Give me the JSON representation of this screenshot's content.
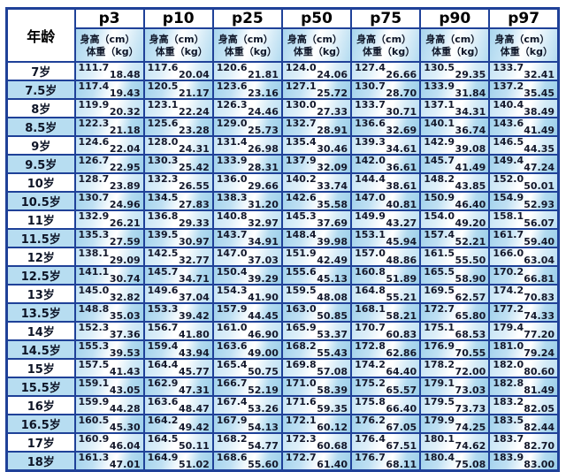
{
  "chart_data": {
    "type": "table",
    "corner_label": "年龄",
    "height_label": "身高（cm）",
    "weight_label": "体重（kg）",
    "columns": [
      "p3",
      "p10",
      "p25",
      "p50",
      "p75",
      "p90",
      "p97"
    ],
    "rows": [
      {
        "age": "7岁",
        "cells": [
          [
            "111.7",
            "18.48"
          ],
          [
            "117.6",
            "20.04"
          ],
          [
            "120.6",
            "21.81"
          ],
          [
            "124.0",
            "24.06"
          ],
          [
            "127.4",
            "26.66"
          ],
          [
            "130.5",
            "29.35"
          ],
          [
            "133.7",
            "32.41"
          ]
        ]
      },
      {
        "age": "7.5岁",
        "cells": [
          [
            "117.4",
            "19.43"
          ],
          [
            "120.5",
            "21.17"
          ],
          [
            "123.6",
            "23.16"
          ],
          [
            "127.1",
            "25.72"
          ],
          [
            "130.7",
            "28.70"
          ],
          [
            "133.9",
            "31.84"
          ],
          [
            "137.2",
            "35.45"
          ]
        ]
      },
      {
        "age": "8岁",
        "cells": [
          [
            "119.9",
            "20.32"
          ],
          [
            "123.1",
            "22.24"
          ],
          [
            "126.3",
            "24.46"
          ],
          [
            "130.0",
            "27.33"
          ],
          [
            "133.7",
            "30.71"
          ],
          [
            "137.1",
            "34.31"
          ],
          [
            "140.4",
            "38.49"
          ]
        ]
      },
      {
        "age": "8.5岁",
        "cells": [
          [
            "122.3",
            "21.18"
          ],
          [
            "125.6",
            "23.28"
          ],
          [
            "129.0",
            "25.73"
          ],
          [
            "132.7",
            "28.91"
          ],
          [
            "136.6",
            "32.69"
          ],
          [
            "140.1",
            "36.74"
          ],
          [
            "143.6",
            "41.49"
          ]
        ]
      },
      {
        "age": "9岁",
        "cells": [
          [
            "124.6",
            "22.04"
          ],
          [
            "128.0",
            "24.31"
          ],
          [
            "131.4",
            "26.98"
          ],
          [
            "135.4",
            "30.46"
          ],
          [
            "139.3",
            "34.61"
          ],
          [
            "142.9",
            "39.08"
          ],
          [
            "146.5",
            "44.35"
          ]
        ]
      },
      {
        "age": "9.5岁",
        "cells": [
          [
            "126.7",
            "22.95"
          ],
          [
            "130.3",
            "25.42"
          ],
          [
            "133.9",
            "28.31"
          ],
          [
            "137.9",
            "32.09"
          ],
          [
            "142.0",
            "36.61"
          ],
          [
            "145.7",
            "41.49"
          ],
          [
            "149.4",
            "47.24"
          ]
        ]
      },
      {
        "age": "10岁",
        "cells": [
          [
            "128.7",
            "23.89"
          ],
          [
            "132.3",
            "26.55"
          ],
          [
            "136.0",
            "29.66"
          ],
          [
            "140.2",
            "33.74"
          ],
          [
            "144.4",
            "38.61"
          ],
          [
            "148.2",
            "43.85"
          ],
          [
            "152.0",
            "50.01"
          ]
        ]
      },
      {
        "age": "10.5岁",
        "cells": [
          [
            "130.7",
            "24.96"
          ],
          [
            "134.5",
            "27.83"
          ],
          [
            "138.3",
            "31.20"
          ],
          [
            "142.6",
            "35.58"
          ],
          [
            "147.0",
            "40.81"
          ],
          [
            "150.9",
            "46.40"
          ],
          [
            "154.9",
            "52.93"
          ]
        ]
      },
      {
        "age": "11岁",
        "cells": [
          [
            "132.9",
            "26.21"
          ],
          [
            "136.8",
            "29.33"
          ],
          [
            "140.8",
            "32.97"
          ],
          [
            "145.3",
            "37.69"
          ],
          [
            "149.9",
            "43.27"
          ],
          [
            "154.0",
            "49.20"
          ],
          [
            "158.1",
            "56.07"
          ]
        ]
      },
      {
        "age": "11.5岁",
        "cells": [
          [
            "135.3",
            "27.59"
          ],
          [
            "139.5",
            "30.97"
          ],
          [
            "143.7",
            "34.91"
          ],
          [
            "148.4",
            "39.98"
          ],
          [
            "153.1",
            "45.94"
          ],
          [
            "157.4",
            "52.21"
          ],
          [
            "161.7",
            "59.40"
          ]
        ]
      },
      {
        "age": "12岁",
        "cells": [
          [
            "138.1",
            "29.09"
          ],
          [
            "142.5",
            "32.77"
          ],
          [
            "147.0",
            "37.03"
          ],
          [
            "151.9",
            "42.49"
          ],
          [
            "157.0",
            "48.86"
          ],
          [
            "161.5",
            "55.50"
          ],
          [
            "166.0",
            "63.04"
          ]
        ]
      },
      {
        "age": "12.5岁",
        "cells": [
          [
            "141.1",
            "30.74"
          ],
          [
            "145.7",
            "34.71"
          ],
          [
            "150.4",
            "39.29"
          ],
          [
            "155.6",
            "45.13"
          ],
          [
            "160.8",
            "51.89"
          ],
          [
            "165.5",
            "58.90"
          ],
          [
            "170.2",
            "66.81"
          ]
        ]
      },
      {
        "age": "13岁",
        "cells": [
          [
            "145.0",
            "32.82"
          ],
          [
            "149.6",
            "37.04"
          ],
          [
            "154.3",
            "41.90"
          ],
          [
            "159.5",
            "48.08"
          ],
          [
            "164.8",
            "55.21"
          ],
          [
            "169.5",
            "62.57"
          ],
          [
            "174.2",
            "70.83"
          ]
        ]
      },
      {
        "age": "13.5岁",
        "cells": [
          [
            "148.8",
            "35.03"
          ],
          [
            "153.3",
            "39.42"
          ],
          [
            "157.9",
            "44.45"
          ],
          [
            "163.0",
            "50.85"
          ],
          [
            "168.1",
            "58.21"
          ],
          [
            "172.7",
            "65.80"
          ],
          [
            "177.2",
            "74.33"
          ]
        ]
      },
      {
        "age": "14岁",
        "cells": [
          [
            "152.3",
            "37.36"
          ],
          [
            "156.7",
            "41.80"
          ],
          [
            "161.0",
            "46.90"
          ],
          [
            "165.9",
            "53.37"
          ],
          [
            "170.7",
            "60.83"
          ],
          [
            "175.1",
            "68.53"
          ],
          [
            "179.4",
            "77.20"
          ]
        ]
      },
      {
        "age": "14.5岁",
        "cells": [
          [
            "155.3",
            "39.53"
          ],
          [
            "159.4",
            "43.94"
          ],
          [
            "163.6",
            "49.00"
          ],
          [
            "168.2",
            "55.43"
          ],
          [
            "172.8",
            "62.86"
          ],
          [
            "176.9",
            "70.55"
          ],
          [
            "181.0",
            "79.24"
          ]
        ]
      },
      {
        "age": "15岁",
        "cells": [
          [
            "157.5",
            "41.43"
          ],
          [
            "164.4",
            "45.77"
          ],
          [
            "165.4",
            "50.75"
          ],
          [
            "169.8",
            "57.08"
          ],
          [
            "174.2",
            "64.40"
          ],
          [
            "178.2",
            "72.00"
          ],
          [
            "182.0",
            "80.60"
          ]
        ]
      },
      {
        "age": "15.5岁",
        "cells": [
          [
            "159.1",
            "43.05"
          ],
          [
            "162.9",
            "47.31"
          ],
          [
            "166.7",
            "52.19"
          ],
          [
            "171.0",
            "58.39"
          ],
          [
            "175.2",
            "65.57"
          ],
          [
            "179.1",
            "73.03"
          ],
          [
            "182.8",
            "81.49"
          ]
        ]
      },
      {
        "age": "16岁",
        "cells": [
          [
            "159.9",
            "44.28"
          ],
          [
            "163.6",
            "48.47"
          ],
          [
            "167.4",
            "53.26"
          ],
          [
            "171.6",
            "59.35"
          ],
          [
            "175.8",
            "66.40"
          ],
          [
            "179.5",
            "73.73"
          ],
          [
            "183.2",
            "82.05"
          ]
        ]
      },
      {
        "age": "16.5岁",
        "cells": [
          [
            "160.5",
            "45.30"
          ],
          [
            "164.2",
            "49.42"
          ],
          [
            "167.9",
            "54.13"
          ],
          [
            "172.1",
            "60.12"
          ],
          [
            "176.2",
            "67.05"
          ],
          [
            "179.9",
            "74.25"
          ],
          [
            "183.5",
            "82.44"
          ]
        ]
      },
      {
        "age": "17岁",
        "cells": [
          [
            "160.9",
            "46.04"
          ],
          [
            "164.5",
            "50.11"
          ],
          [
            "168.2",
            "54.77"
          ],
          [
            "172.3",
            "60.68"
          ],
          [
            "176.4",
            "67.51"
          ],
          [
            "180.1",
            "74.62"
          ],
          [
            "183.7",
            "82.70"
          ]
        ]
      },
      {
        "age": "18岁",
        "cells": [
          [
            "161.3",
            "47.01"
          ],
          [
            "164.9",
            "51.02"
          ],
          [
            "168.6",
            "55.60"
          ],
          [
            "172.7",
            "61.40"
          ],
          [
            "176.7",
            "68.11"
          ],
          [
            "180.4",
            "75.08"
          ],
          [
            "183.9",
            "83.00"
          ]
        ]
      }
    ],
    "colors": {
      "border": "#1f4198",
      "row_light": "#dfeffa",
      "row_blue": "#aed8ee",
      "text": "#14182b"
    }
  }
}
